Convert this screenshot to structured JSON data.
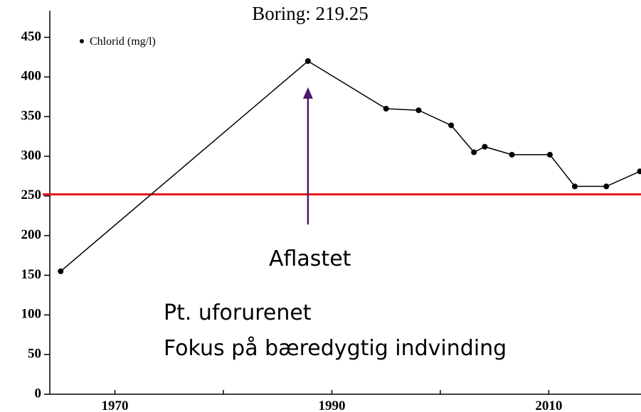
{
  "chart_data": {
    "type": "line",
    "title": "Boring: 219.25",
    "x": [
      1965,
      1987.8,
      1995,
      1998,
      2001,
      2003.1,
      2004.1,
      2006.6,
      2010.1,
      2012.4,
      2015.3,
      2018.4
    ],
    "series": [
      {
        "name": "Chlorid (mg/l)",
        "color": "#000000",
        "values": [
          155,
          420,
          360,
          358,
          339,
          305,
          312,
          302,
          302,
          262,
          262,
          281
        ]
      }
    ],
    "xlim": [
      1964,
      2018.5
    ],
    "xticks": [
      1970,
      1990,
      2010
    ],
    "xminorticks": [
      1980,
      2000
    ],
    "ylim": [
      0,
      480
    ],
    "yticks": [
      0,
      50,
      100,
      150,
      200,
      250,
      300,
      350,
      400,
      450
    ],
    "reference_line": {
      "value": 252,
      "color": "#e8141a"
    },
    "arrow": {
      "x": 1987.8,
      "y_from": 214,
      "y_to": 387,
      "color": "#4b1a6b"
    },
    "annotations": [
      "Aflastet",
      "Pt. uforurenet",
      "Fokus på bæredygtig indvinding"
    ]
  }
}
